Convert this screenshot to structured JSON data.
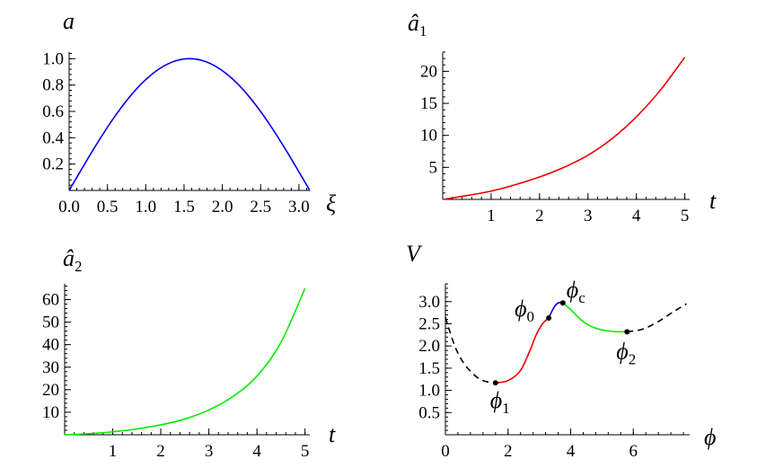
{
  "chart_data": [
    {
      "id": "a",
      "type": "line",
      "title": "a",
      "xlabel": "ξ",
      "ylabel": "",
      "xlim": [
        0,
        3.1416
      ],
      "ylim": [
        0,
        1.05
      ],
      "xticks": [
        0.0,
        0.5,
        1.0,
        1.5,
        2.0,
        2.5,
        3.0
      ],
      "xtick_labels": [
        "0.0",
        "0.5",
        "1.0",
        "1.5",
        "2.0",
        "2.5",
        "3.0"
      ],
      "yticks": [
        0.2,
        0.4,
        0.6,
        0.8,
        1.0
      ],
      "ytick_labels": [
        "0.2",
        "0.4",
        "0.6",
        "0.8",
        "1.0"
      ],
      "series": [
        {
          "color": "#0000ee",
          "x": [
            0.0,
            0.1571,
            0.3142,
            0.4712,
            0.6283,
            0.7854,
            0.9425,
            1.0996,
            1.2566,
            1.4137,
            1.5708,
            1.7279,
            1.885,
            2.042,
            2.1991,
            2.3562,
            2.5133,
            2.6704,
            2.8274,
            2.9845,
            3.1416
          ],
          "y": [
            0.0,
            0.156,
            0.309,
            0.454,
            0.588,
            0.707,
            0.809,
            0.891,
            0.951,
            0.988,
            1.0,
            0.988,
            0.951,
            0.891,
            0.809,
            0.707,
            0.588,
            0.454,
            0.309,
            0.156,
            0.0
          ]
        }
      ]
    },
    {
      "id": "a1",
      "type": "line",
      "title": "â",
      "title_sub": "1",
      "xlabel": "t",
      "ylabel": "",
      "xlim": [
        0,
        5.1
      ],
      "ylim": [
        0,
        23
      ],
      "xticks": [
        1,
        2,
        3,
        4,
        5
      ],
      "xtick_labels": [
        "1",
        "2",
        "3",
        "4",
        "5"
      ],
      "yticks": [
        5,
        10,
        15,
        20
      ],
      "ytick_labels": [
        "5",
        "10",
        "15",
        "20"
      ],
      "series": [
        {
          "color": "#ee0000",
          "x": [
            0,
            0.5,
            1.0,
            1.5,
            2.0,
            2.5,
            3.0,
            3.5,
            4.0,
            4.5,
            5.0
          ],
          "y": [
            0.0,
            0.6,
            1.3,
            2.3,
            3.5,
            5.0,
            6.9,
            9.5,
            12.9,
            17.1,
            22.2
          ]
        }
      ]
    },
    {
      "id": "a2",
      "type": "line",
      "title": "â",
      "title_sub": "2",
      "xlabel": "t",
      "ylabel": "",
      "xlim": [
        0,
        5.1
      ],
      "ylim": [
        0,
        67
      ],
      "xticks": [
        1,
        2,
        3,
        4,
        5
      ],
      "xtick_labels": [
        "1",
        "2",
        "3",
        "4",
        "5"
      ],
      "yticks": [
        10,
        20,
        30,
        40,
        50,
        60
      ],
      "ytick_labels": [
        "10",
        "20",
        "30",
        "40",
        "50",
        "60"
      ],
      "series": [
        {
          "color": "#00ee00",
          "x": [
            0,
            0.5,
            1.0,
            1.5,
            2.0,
            2.5,
            3.0,
            3.5,
            4.0,
            4.5,
            5.0
          ],
          "y": [
            0.0,
            0.5,
            1.3,
            2.6,
            4.4,
            7.0,
            11.0,
            17.0,
            26.0,
            41.0,
            65.0
          ]
        }
      ]
    },
    {
      "id": "V",
      "type": "line",
      "title": "V",
      "xlabel": "ϕ",
      "ylabel": "",
      "xlim": [
        0,
        7.8
      ],
      "ylim": [
        0,
        3.4
      ],
      "xticks": [
        0,
        2,
        4,
        6
      ],
      "xtick_labels": [
        "0",
        "2",
        "4",
        "6"
      ],
      "yticks": [
        0.5,
        1.0,
        1.5,
        2.0,
        2.5,
        3.0
      ],
      "ytick_labels": [
        "0.5",
        "1.0",
        "1.5",
        "2.0",
        "2.5",
        "3.0"
      ],
      "series": [
        {
          "style": "dashed",
          "color": "#000000",
          "x": [
            0.0,
            0.3,
            0.6,
            1.0,
            1.3,
            1.6
          ],
          "y": [
            2.65,
            2.0,
            1.6,
            1.3,
            1.2,
            1.17
          ]
        },
        {
          "color": "#ee0000",
          "x": [
            1.6,
            2.0,
            2.4,
            2.7,
            2.9,
            3.1,
            3.3
          ],
          "y": [
            1.17,
            1.22,
            1.45,
            1.9,
            2.25,
            2.5,
            2.63
          ]
        },
        {
          "color": "#0000ee",
          "x": [
            3.3,
            3.45,
            3.6,
            3.75
          ],
          "y": [
            2.63,
            2.85,
            2.97,
            2.97
          ]
        },
        {
          "color": "#00ee00",
          "x": [
            3.75,
            4.0,
            4.4,
            4.8,
            5.3,
            5.8
          ],
          "y": [
            2.97,
            2.82,
            2.55,
            2.4,
            2.33,
            2.32
          ]
        },
        {
          "style": "dashed",
          "color": "#000000",
          "x": [
            5.8,
            6.3,
            6.8,
            7.3,
            7.7
          ],
          "y": [
            2.32,
            2.38,
            2.55,
            2.78,
            2.95
          ]
        }
      ],
      "points": [
        {
          "name": "ϕ",
          "sub": "1",
          "x": 1.6,
          "y": 1.17
        },
        {
          "name": "ϕ",
          "sub": "0",
          "x": 3.3,
          "y": 2.63
        },
        {
          "name": "ϕ",
          "sub": "c",
          "x": 3.75,
          "y": 2.97
        },
        {
          "name": "ϕ",
          "sub": "2",
          "x": 5.8,
          "y": 2.32
        }
      ]
    }
  ]
}
